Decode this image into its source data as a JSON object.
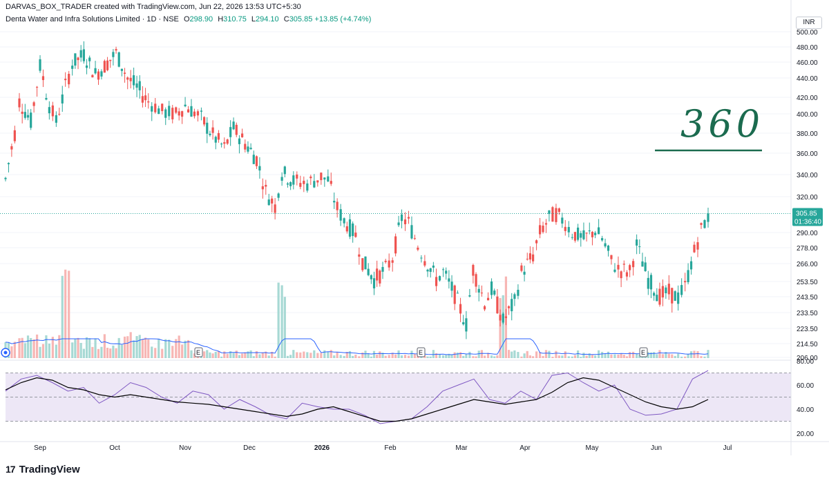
{
  "header": {
    "credit": "DARVAS_BOX_TRADER created with TradingView.com, Jun 22, 2026 13:53 UTC+5:30",
    "symbol_line": "Denta Water and Infra Solutions Limited · 1D · NSE",
    "open_label": "O",
    "open": "298.90",
    "high_label": "H",
    "high": "310.75",
    "low_label": "L",
    "low": "294.10",
    "close_label": "C",
    "close": "305.85",
    "change": "+13.85 (+4.74%)"
  },
  "currency": "INR",
  "footer": {
    "brand": "TradingView",
    "logo_mark": "17"
  },
  "colors": {
    "up": "#26a69a",
    "down": "#ef5350",
    "rsi_line": "#7e57c2",
    "rsi_ma": "#000000",
    "rsi_band": "#ede7f6"
  },
  "chart_data": [
    {
      "type": "candlestick",
      "title": "Denta Water and Infra Solutions Limited",
      "y_axis_ticks": [
        "500.00",
        "480.00",
        "460.00",
        "440.00",
        "420.00",
        "400.00",
        "380.00",
        "360.00",
        "340.00",
        "320.00",
        "290.00",
        "278.00",
        "266.00",
        "253.50",
        "243.50",
        "233.50",
        "223.50",
        "214.50",
        "206.00"
      ],
      "log_scale": true,
      "ylim": [
        206,
        505
      ],
      "x_ticks": [
        "Sep",
        "Oct",
        "Nov",
        "Dec",
        "2026",
        "Feb",
        "Mar",
        "Apr",
        "May",
        "Jun",
        "Jul"
      ],
      "last_price_label": "305.85",
      "countdown_label": "01:36:40",
      "earnings_markers": [
        "E",
        "E",
        "E"
      ],
      "annotation": "360",
      "close_path": [
        {
          "date": "2025-08-21",
          "close": 336
        },
        {
          "date": "2025-08-25",
          "close": 380
        },
        {
          "date": "2025-08-27",
          "close": 415
        },
        {
          "date": "2025-09-01",
          "close": 392
        },
        {
          "date": "2025-09-05",
          "close": 455
        },
        {
          "date": "2025-09-09",
          "close": 410
        },
        {
          "date": "2025-09-12",
          "close": 392
        },
        {
          "date": "2025-09-16",
          "close": 430
        },
        {
          "date": "2025-09-19",
          "close": 458
        },
        {
          "date": "2025-09-24",
          "close": 470
        },
        {
          "date": "2025-09-29",
          "close": 445
        },
        {
          "date": "2025-10-03",
          "close": 455
        },
        {
          "date": "2025-10-08",
          "close": 472
        },
        {
          "date": "2025-10-13",
          "close": 440
        },
        {
          "date": "2025-10-17",
          "close": 430
        },
        {
          "date": "2025-10-22",
          "close": 415
        },
        {
          "date": "2025-10-28",
          "close": 403
        },
        {
          "date": "2025-11-03",
          "close": 400
        },
        {
          "date": "2025-11-07",
          "close": 410
        },
        {
          "date": "2025-11-11",
          "close": 402
        },
        {
          "date": "2025-11-14",
          "close": 395
        },
        {
          "date": "2025-11-19",
          "close": 378
        },
        {
          "date": "2025-11-24",
          "close": 365
        },
        {
          "date": "2025-11-28",
          "close": 385
        },
        {
          "date": "2025-12-03",
          "close": 370
        },
        {
          "date": "2025-12-08",
          "close": 355
        },
        {
          "date": "2025-12-12",
          "close": 325
        },
        {
          "date": "2025-12-16",
          "close": 312
        },
        {
          "date": "2025-12-19",
          "close": 342
        },
        {
          "date": "2025-12-24",
          "close": 334
        },
        {
          "date": "2025-12-30",
          "close": 332
        },
        {
          "date": "2026-01-05",
          "close": 338
        },
        {
          "date": "2026-01-08",
          "close": 335
        },
        {
          "date": "2026-01-12",
          "close": 310
        },
        {
          "date": "2026-01-15",
          "close": 300
        },
        {
          "date": "2026-01-20",
          "close": 288
        },
        {
          "date": "2026-01-23",
          "close": 268
        },
        {
          "date": "2026-01-28",
          "close": 255
        },
        {
          "date": "2026-02-02",
          "close": 262
        },
        {
          "date": "2026-02-05",
          "close": 270
        },
        {
          "date": "2026-02-09",
          "close": 302
        },
        {
          "date": "2026-02-12",
          "close": 298
        },
        {
          "date": "2026-02-16",
          "close": 280
        },
        {
          "date": "2026-02-19",
          "close": 270
        },
        {
          "date": "2026-02-24",
          "close": 255
        },
        {
          "date": "2026-02-27",
          "close": 260
        },
        {
          "date": "2026-03-04",
          "close": 245
        },
        {
          "date": "2026-03-09",
          "close": 226
        },
        {
          "date": "2026-03-12",
          "close": 262
        },
        {
          "date": "2026-03-17",
          "close": 240
        },
        {
          "date": "2026-03-20",
          "close": 248
        },
        {
          "date": "2026-03-25",
          "close": 228
        },
        {
          "date": "2026-03-30",
          "close": 240
        },
        {
          "date": "2026-04-02",
          "close": 260
        },
        {
          "date": "2026-04-07",
          "close": 272
        },
        {
          "date": "2026-04-10",
          "close": 290
        },
        {
          "date": "2026-04-14",
          "close": 302
        },
        {
          "date": "2026-04-17",
          "close": 306
        },
        {
          "date": "2026-04-21",
          "close": 298
        },
        {
          "date": "2026-04-24",
          "close": 290
        },
        {
          "date": "2026-04-29",
          "close": 285
        },
        {
          "date": "2026-05-04",
          "close": 292
        },
        {
          "date": "2026-05-07",
          "close": 285
        },
        {
          "date": "2026-05-11",
          "close": 268
        },
        {
          "date": "2026-05-14",
          "close": 262
        },
        {
          "date": "2026-05-19",
          "close": 260
        },
        {
          "date": "2026-05-22",
          "close": 280
        },
        {
          "date": "2026-05-27",
          "close": 255
        },
        {
          "date": "2026-06-01",
          "close": 244
        },
        {
          "date": "2026-06-05",
          "close": 246
        },
        {
          "date": "2026-06-09",
          "close": 243
        },
        {
          "date": "2026-06-12",
          "close": 250
        },
        {
          "date": "2026-06-16",
          "close": 275
        },
        {
          "date": "2026-06-19",
          "close": 292
        },
        {
          "date": "2026-06-22",
          "close": 305.85
        }
      ]
    },
    {
      "type": "bar",
      "title": "",
      "notable_volume_spikes": [
        "2025-09-16",
        "2025-12-19",
        "2026-03-25"
      ]
    },
    {
      "type": "line",
      "title": "",
      "y_axis_ticks": [
        "80.00",
        "60.00",
        "40.00",
        "20.00"
      ],
      "ylim": [
        20,
        80
      ],
      "bands": [
        70,
        50,
        30
      ],
      "series": [
        {
          "values": [
            55,
            65,
            68,
            62,
            55,
            58,
            45,
            52,
            62,
            58,
            50,
            45,
            55,
            52,
            40,
            48,
            42,
            35,
            32,
            45,
            42,
            40,
            40,
            35,
            28,
            30,
            32,
            42,
            55,
            60,
            65,
            48,
            45,
            55,
            48,
            68,
            70,
            62,
            55,
            60,
            40,
            35,
            36,
            40,
            65,
            72
          ]
        },
        {
          "values": [
            56,
            62,
            66,
            64,
            58,
            56,
            52,
            50,
            52,
            50,
            48,
            46,
            45,
            44,
            42,
            40,
            38,
            36,
            34,
            36,
            40,
            42,
            38,
            34,
            30,
            30,
            32,
            36,
            40,
            44,
            48,
            46,
            44,
            46,
            48,
            54,
            62,
            66,
            64,
            58,
            52,
            46,
            42,
            40,
            42,
            48
          ]
        }
      ]
    }
  ]
}
